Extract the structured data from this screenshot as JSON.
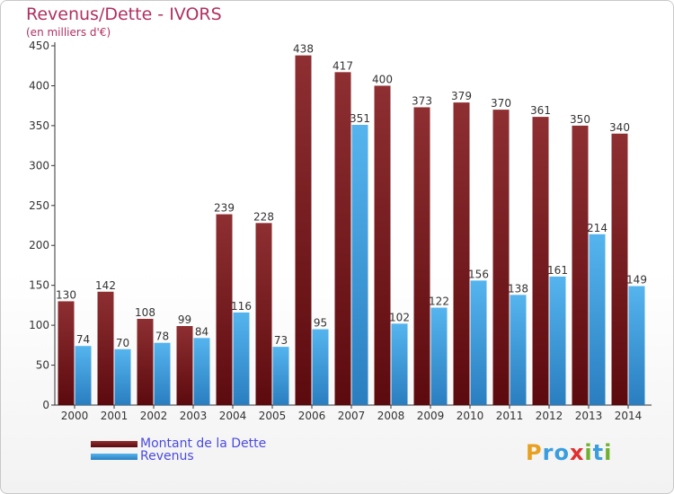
{
  "header": {
    "title": "Revenus/Dette - IVORS",
    "subtitle": "(en milliers d'€)"
  },
  "chart_data": {
    "type": "bar",
    "categories": [
      "2000",
      "2001",
      "2002",
      "2003",
      "2004",
      "2005",
      "2006",
      "2007",
      "2008",
      "2009",
      "2010",
      "2011",
      "2012",
      "2013",
      "2014"
    ],
    "series": [
      {
        "name": "Montant de la Dette",
        "color": "#7a1a1e",
        "values": [
          130,
          142,
          108,
          99,
          239,
          228,
          438,
          417,
          400,
          373,
          379,
          370,
          361,
          350,
          340
        ]
      },
      {
        "name": "Revenus",
        "color": "#3a9de0",
        "values": [
          74,
          70,
          78,
          84,
          116,
          73,
          95,
          351,
          102,
          122,
          156,
          138,
          161,
          214,
          149
        ]
      }
    ],
    "yticks": [
      0,
      50,
      100,
      150,
      200,
      250,
      300,
      350,
      400,
      450
    ],
    "ylim": [
      0,
      450
    ],
    "grid": false,
    "data_labels": true,
    "legend_position": "bottom-left"
  },
  "legend": {
    "debt_label": "Montant de la Dette",
    "revenue_label": "Revenus"
  },
  "logo": {
    "letters": [
      "P",
      "r",
      "o",
      "x",
      "i",
      "t",
      "i"
    ],
    "colors": [
      "#e8a020",
      "#3a9de0",
      "#3a9de0",
      "#e03030",
      "#70b030",
      "#3a9de0",
      "#70b030"
    ]
  }
}
